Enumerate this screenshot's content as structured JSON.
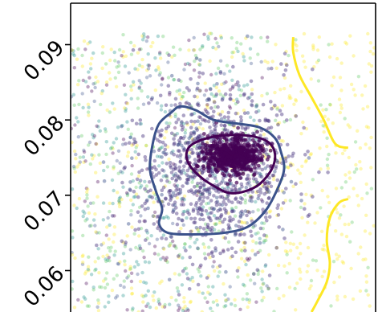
{
  "chart_data": {
    "type": "scatter",
    "title": "",
    "xlabel": "",
    "ylabel": "",
    "ylim": [
      0.0545,
      0.0955
    ],
    "xlim": [
      0,
      1
    ],
    "x_ticks_visible": false,
    "grid": false,
    "legend": "none",
    "y_ticks": [
      {
        "value": 0.06,
        "label": "0.06"
      },
      {
        "value": 0.07,
        "label": "0.07"
      },
      {
        "value": 0.08,
        "label": "0.08"
      },
      {
        "value": 0.09,
        "label": "0.09"
      }
    ],
    "colormap": "viridis",
    "point_colors": [
      "#440154",
      "#3b528b",
      "#21918c",
      "#5ec962",
      "#fde725"
    ],
    "scatter_regions": [
      {
        "name": "dense core",
        "color": "#440154",
        "center": [
          0.53,
          0.0753
        ],
        "spread": [
          0.045,
          0.0012
        ]
      },
      {
        "name": "cluster",
        "color": "#46327e",
        "center": [
          0.47,
          0.0735
        ],
        "spread": [
          0.13,
          0.0055
        ]
      },
      {
        "name": "background left",
        "color": "mixed",
        "x_range": [
          0.0,
          0.65
        ],
        "y_range": [
          0.0545,
          0.0915
        ]
      },
      {
        "name": "background right",
        "color": "#fde725",
        "x_range": [
          0.65,
          1.0
        ],
        "y_range": [
          0.0545,
          0.0915
        ]
      }
    ],
    "contours": [
      {
        "level": "inner",
        "color": "#440154",
        "points": [
          [
            0.4,
            0.0768
          ],
          [
            0.46,
            0.0777
          ],
          [
            0.53,
            0.078
          ],
          [
            0.6,
            0.0778
          ],
          [
            0.65,
            0.077
          ],
          [
            0.67,
            0.0755
          ],
          [
            0.66,
            0.0735
          ],
          [
            0.62,
            0.0715
          ],
          [
            0.57,
            0.0705
          ],
          [
            0.52,
            0.0703
          ],
          [
            0.48,
            0.071
          ],
          [
            0.43,
            0.0723
          ],
          [
            0.39,
            0.074
          ],
          [
            0.38,
            0.0756
          ]
        ]
      },
      {
        "level": "middle",
        "color": "#3b528b",
        "points": [
          [
            0.33,
            0.081
          ],
          [
            0.36,
            0.0818
          ],
          [
            0.41,
            0.0813
          ],
          [
            0.47,
            0.08
          ],
          [
            0.55,
            0.0795
          ],
          [
            0.62,
            0.079
          ],
          [
            0.67,
            0.0776
          ],
          [
            0.69,
            0.0757
          ],
          [
            0.7,
            0.0735
          ],
          [
            0.68,
            0.071
          ],
          [
            0.64,
            0.068
          ],
          [
            0.58,
            0.0658
          ],
          [
            0.5,
            0.065
          ],
          [
            0.4,
            0.0648
          ],
          [
            0.32,
            0.065
          ],
          [
            0.29,
            0.0662
          ],
          [
            0.3,
            0.0682
          ],
          [
            0.28,
            0.0705
          ],
          [
            0.26,
            0.0735
          ],
          [
            0.27,
            0.077
          ],
          [
            0.29,
            0.0795
          ]
        ]
      },
      {
        "level": "outer-upper",
        "color": "#fde725",
        "closed": false,
        "points": [
          [
            0.73,
            0.091
          ],
          [
            0.73,
            0.089
          ],
          [
            0.75,
            0.086
          ],
          [
            0.79,
            0.083
          ],
          [
            0.83,
            0.08
          ],
          [
            0.86,
            0.0773
          ],
          [
            0.88,
            0.0765
          ],
          [
            0.91,
            0.0763
          ]
        ]
      },
      {
        "level": "outer-lower",
        "color": "#fde725",
        "closed": false,
        "points": [
          [
            0.91,
            0.0695
          ],
          [
            0.88,
            0.069
          ],
          [
            0.85,
            0.067
          ],
          [
            0.84,
            0.064
          ],
          [
            0.85,
            0.061
          ],
          [
            0.84,
            0.0585
          ],
          [
            0.81,
            0.056
          ],
          [
            0.79,
            0.0545
          ]
        ]
      }
    ]
  }
}
